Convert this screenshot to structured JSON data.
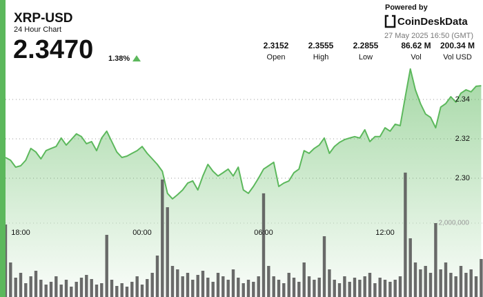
{
  "header": {
    "symbol": "XRP-USD",
    "subtitle": "24 Hour Chart",
    "price": "2.3470",
    "change": "1.38%"
  },
  "stats": [
    {
      "value": "2.3152",
      "label": "Open"
    },
    {
      "value": "2.3555",
      "label": "High"
    },
    {
      "value": "2.2855",
      "label": "Low"
    },
    {
      "value": "86.62 M",
      "label": "Vol"
    },
    {
      "value": "200.34 M",
      "label": "Vol USD"
    }
  ],
  "branding": {
    "powered_by": "Powered by",
    "name": "CoinDeskData",
    "timestamp": "27 May 2025 16:50 (GMT)"
  },
  "chart_data": {
    "type": "line",
    "x": [
      -0.75,
      -0.5,
      -0.25,
      0,
      0.25,
      0.5,
      0.75,
      1,
      1.25,
      1.5,
      1.75,
      2,
      2.25,
      2.5,
      2.75,
      3,
      3.25,
      3.5,
      3.75,
      4,
      4.25,
      4.5,
      4.75,
      5,
      5.25,
      5.5,
      5.75,
      6,
      6.25,
      6.5,
      6.75,
      7,
      7.25,
      7.5,
      7.75,
      8,
      8.25,
      8.5,
      8.75,
      9,
      9.25,
      9.5,
      9.75,
      10,
      10.25,
      10.5,
      10.75,
      11,
      11.25,
      11.5,
      11.75,
      12,
      12.25,
      12.5,
      12.75,
      13,
      13.25,
      13.5,
      13.75,
      14,
      14.25,
      14.5,
      14.75,
      15,
      15.25,
      15.5,
      15.75,
      16,
      16.25,
      16.5,
      16.75,
      17,
      17.25,
      17.5,
      17.75,
      18,
      18.25,
      18.5,
      18.75,
      19,
      19.25,
      19.5,
      19.75,
      20,
      20.25,
      20.5,
      20.75,
      21,
      21.25,
      21.5,
      21.75,
      22,
      22.25,
      22.5,
      22.75
    ],
    "xlim": [
      -0.75,
      22.84
    ],
    "xticks": [
      {
        "value": 0,
        "label": "18:00"
      },
      {
        "value": 6,
        "label": "00:00"
      },
      {
        "value": 12,
        "label": "06:00"
      },
      {
        "value": 18,
        "label": "12:00"
      }
    ],
    "ylim": [
      2.2396,
      2.3572
    ],
    "yticks": [
      {
        "value": 2.3,
        "label": "2.30"
      },
      {
        "value": 2.32,
        "label": "2.32"
      },
      {
        "value": 2.34,
        "label": "2.34"
      }
    ],
    "y2lim": [
      0,
      6260000
    ],
    "y2ticks": [
      {
        "value": 2000000,
        "label": "2,000,000"
      }
    ],
    "grid": true,
    "series": [
      {
        "type": "area",
        "color": "#5cb85c",
        "values": [
          2.3105,
          2.3091,
          2.3056,
          2.3063,
          2.3091,
          2.3151,
          2.3133,
          2.3098,
          2.314,
          2.3151,
          2.3161,
          2.3204,
          2.3168,
          2.3196,
          2.3225,
          2.3211,
          2.3175,
          2.3186,
          2.314,
          2.3204,
          2.3239,
          2.3186,
          2.3133,
          2.3105,
          2.3112,
          2.3126,
          2.314,
          2.3161,
          2.3126,
          2.3098,
          2.307,
          2.3035,
          2.2923,
          2.2895,
          2.2916,
          2.294,
          2.2975,
          2.2986,
          2.294,
          2.3011,
          2.307,
          2.3035,
          2.3011,
          2.3028,
          2.3046,
          2.3011,
          2.3056,
          2.294,
          2.2923,
          2.2958,
          2.3,
          2.3046,
          2.3063,
          2.3081,
          2.2958,
          2.2975,
          2.2986,
          2.3028,
          2.3046,
          2.314,
          2.3126,
          2.3151,
          2.3168,
          2.3204,
          2.3126,
          2.3161,
          2.3182,
          2.3196,
          2.3204,
          2.3211,
          2.3204,
          2.3246,
          2.3186,
          2.3211,
          2.3211,
          2.3256,
          2.3239,
          2.3274,
          2.3267,
          2.3414,
          2.3555,
          2.3449,
          2.3379,
          2.3326,
          2.3309,
          2.3256,
          2.3361,
          2.3379,
          2.3414,
          2.3386,
          2.3432,
          2.3449,
          2.3439,
          2.3467,
          2.347
        ]
      },
      {
        "type": "bar",
        "axis": "y2",
        "color": "#5a5a5a",
        "values": [
          1963000,
          935000,
          523000,
          654000,
          374000,
          561000,
          710000,
          467000,
          336000,
          411000,
          561000,
          336000,
          467000,
          280000,
          411000,
          523000,
          598000,
          486000,
          336000,
          374000,
          1682000,
          467000,
          299000,
          374000,
          280000,
          411000,
          561000,
          336000,
          486000,
          654000,
          1122000,
          3178000,
          2430000,
          841000,
          748000,
          561000,
          654000,
          467000,
          598000,
          710000,
          523000,
          411000,
          654000,
          561000,
          467000,
          748000,
          523000,
          374000,
          467000,
          411000,
          561000,
          2804000,
          841000,
          561000,
          467000,
          374000,
          654000,
          523000,
          411000,
          935000,
          561000,
          467000,
          523000,
          1645000,
          748000,
          467000,
          374000,
          561000,
          411000,
          523000,
          467000,
          561000,
          654000,
          374000,
          523000,
          467000,
          411000,
          467000,
          561000,
          3365000,
          1589000,
          935000,
          748000,
          841000,
          654000,
          2000000,
          748000,
          935000,
          654000,
          561000,
          841000,
          654000,
          748000,
          561000,
          1028000
        ]
      }
    ]
  }
}
